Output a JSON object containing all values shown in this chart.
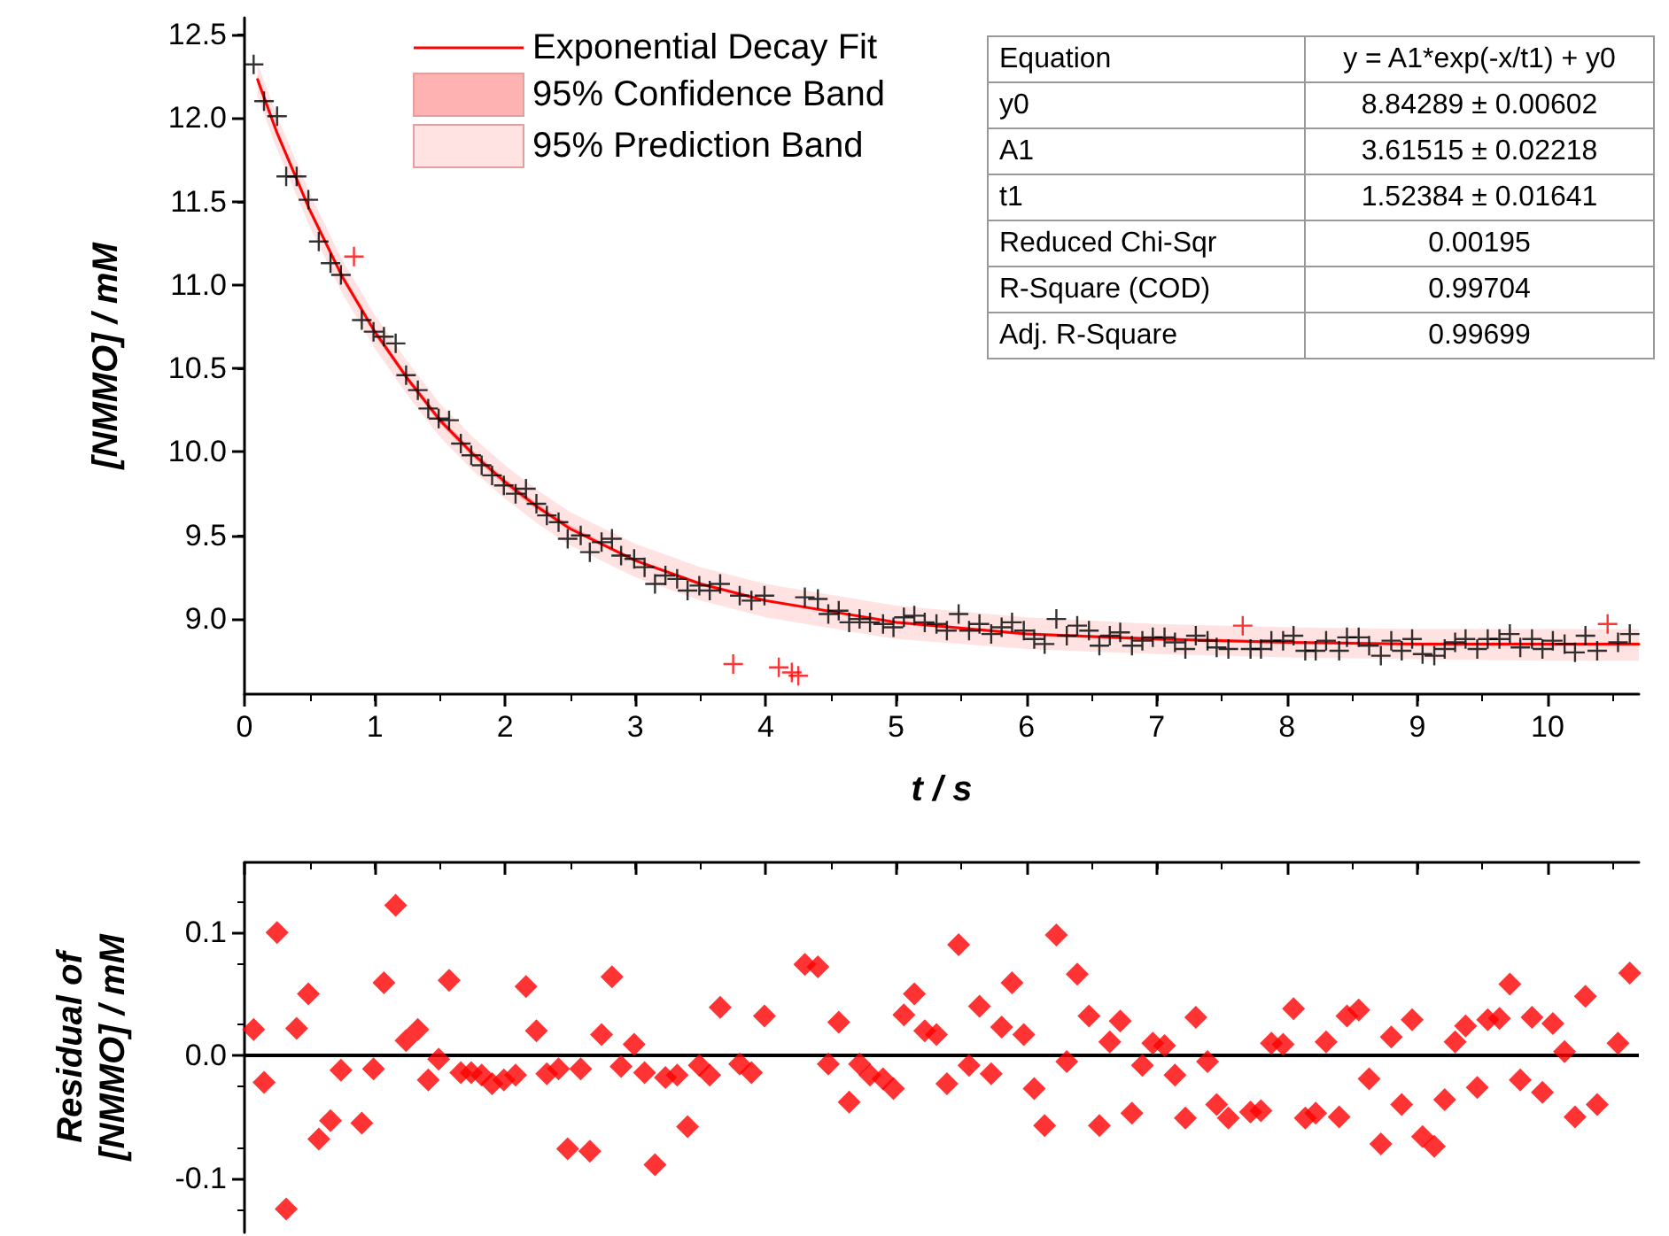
{
  "chart_data": [
    {
      "type": "scatter",
      "xlabel": "t / s",
      "ylabel": "[NMMO] / mM",
      "xlim": [
        0,
        10.7
      ],
      "ylim": [
        8.55,
        12.6
      ],
      "xticks": [
        0,
        1,
        2,
        3,
        4,
        5,
        6,
        7,
        8,
        9,
        10
      ],
      "yticks": [
        {
          "value": 9,
          "label": "9.0"
        },
        9.5,
        {
          "value": 10,
          "label": "10.0"
        },
        10.5,
        {
          "value": 11,
          "label": "11.0"
        },
        11.5,
        {
          "value": 12,
          "label": "12.0"
        },
        12.5
      ],
      "legend": "top",
      "marker": "cross",
      "grid": false,
      "annotations": [
        "Equation",
        "y = A1*exp(-x/t1) + y0",
        "y0",
        "8.84289 ± 0.00602",
        "A1",
        "3.61515 ± 0.02218",
        "t1",
        "1.52384 ± 0.01641",
        "Reduced Chi-Sqr",
        "0.00195",
        "R-Square (COD)",
        "0.99704",
        "Adj. R-Square",
        "0.99699"
      ],
      "series": [
        {
          "type": "line",
          "name": "95% Prediction Band",
          "color": "#ffe3e3",
          "x": [
            0.1,
            0.25,
            0.5,
            0.75,
            1,
            1.25,
            1.5,
            1.75,
            2,
            2.25,
            2.5,
            3,
            3.5,
            4,
            5,
            6,
            7,
            8,
            9,
            10,
            10.7
          ],
          "values": [
            null,
            null,
            null,
            null,
            null,
            null,
            null,
            null,
            null,
            null,
            null,
            null,
            null,
            null,
            null,
            null,
            null,
            null,
            null,
            null,
            null
          ],
          "lower": [
            12.13,
            11.81,
            11.35,
            10.95,
            10.62,
            10.34,
            10.09,
            9.89,
            9.72,
            9.57,
            9.44,
            9.25,
            9.11,
            9.01,
            8.88,
            8.82,
            8.79,
            8.77,
            8.76,
            8.75,
            8.75
          ],
          "upper": [
            12.33,
            12.01,
            11.55,
            11.15,
            10.82,
            10.54,
            10.29,
            10.09,
            9.92,
            9.77,
            9.64,
            9.45,
            9.31,
            9.21,
            9.08,
            9.01,
            8.97,
            8.95,
            8.94,
            8.94,
            8.94
          ]
        },
        {
          "type": "line",
          "name": "95% Confidence Band",
          "color": "#ffb2b2",
          "x": [
            0.1,
            0.25,
            0.5,
            0.75,
            1,
            1.25,
            1.5,
            1.75,
            2,
            2.25,
            2.5,
            3,
            3.5,
            4,
            5,
            6,
            7,
            8,
            9,
            10,
            10.7
          ],
          "values": [
            null,
            null,
            null,
            null,
            null,
            null,
            null,
            null,
            null,
            null,
            null,
            null,
            null,
            null,
            null,
            null,
            null,
            null,
            null,
            null,
            null
          ],
          "lower": [
            12.2,
            11.89,
            11.43,
            11.03,
            10.7,
            10.42,
            10.17,
            9.97,
            9.8,
            9.65,
            9.53,
            9.34,
            9.2,
            9.1,
            8.97,
            8.9,
            8.87,
            8.85,
            8.84,
            8.84,
            8.84
          ],
          "upper": [
            12.26,
            11.93,
            11.47,
            11.07,
            10.74,
            10.46,
            10.21,
            10.01,
            9.84,
            9.69,
            9.56,
            9.36,
            9.22,
            9.12,
            8.99,
            8.92,
            8.89,
            8.87,
            8.86,
            8.86,
            8.86
          ]
        },
        {
          "type": "line",
          "name": "Exponential Decay Fit",
          "color": "#ff0000",
          "marker": "none",
          "line_style": "solid",
          "x": [
            0.1,
            0.25,
            0.5,
            0.75,
            1,
            1.25,
            1.5,
            1.75,
            2,
            2.25,
            2.5,
            3,
            3.5,
            4,
            5,
            6,
            7,
            8,
            9,
            10,
            10.7
          ],
          "values": [
            12.23,
            11.91,
            11.45,
            11.05,
            10.72,
            10.44,
            10.19,
            9.99,
            9.82,
            9.67,
            9.54,
            9.35,
            9.21,
            9.11,
            8.98,
            8.91,
            8.88,
            8.86,
            8.85,
            8.85,
            8.85
          ]
        },
        {
          "color": "#000000",
          "x": [
            0.07,
            0.15,
            0.25,
            0.32,
            0.4,
            0.49,
            0.57,
            0.66,
            0.74,
            0.9,
            0.99,
            1.07,
            1.16,
            1.24,
            1.33,
            1.41,
            1.49,
            1.57,
            1.66,
            1.74,
            1.82,
            1.9,
            1.99,
            2.08,
            2.16,
            2.24,
            2.32,
            2.41,
            2.48,
            2.58,
            2.65,
            2.74,
            2.82,
            2.89,
            2.99,
            3.07,
            3.15,
            3.23,
            3.32,
            3.4,
            3.49,
            3.57,
            3.65,
            3.8,
            3.89,
            3.99,
            4.3,
            4.4,
            4.48,
            4.56,
            4.64,
            4.72,
            4.8,
            4.9,
            4.98,
            5.06,
            5.14,
            5.22,
            5.31,
            5.39,
            5.48,
            5.56,
            5.64,
            5.73,
            5.81,
            5.89,
            5.98,
            6.06,
            6.14,
            6.23,
            6.31,
            6.39,
            6.48,
            6.56,
            6.64,
            6.72,
            6.81,
            6.89,
            6.97,
            7.06,
            7.14,
            7.22,
            7.3,
            7.39,
            7.46,
            7.55,
            7.72,
            7.8,
            7.88,
            7.97,
            8.05,
            8.14,
            8.22,
            8.3,
            8.4,
            8.46,
            8.55,
            8.63,
            8.72,
            8.8,
            8.88,
            8.96,
            9.04,
            9.13,
            9.21,
            9.29,
            9.37,
            9.46,
            9.54,
            9.63,
            9.71,
            9.79,
            9.88,
            9.96,
            10.04,
            10.13,
            10.21,
            10.29,
            10.38,
            10.54,
            10.63
          ],
          "values": [
            12.32,
            12.1,
            12.01,
            11.65,
            11.65,
            11.51,
            11.26,
            11.13,
            11.06,
            10.79,
            10.72,
            10.69,
            10.65,
            10.46,
            10.37,
            10.26,
            10.2,
            10.19,
            10.05,
            9.98,
            9.92,
            9.86,
            9.8,
            9.75,
            9.78,
            9.69,
            9.62,
            9.58,
            9.48,
            9.5,
            9.4,
            9.46,
            9.48,
            9.38,
            9.36,
            9.31,
            9.21,
            9.26,
            9.24,
            9.17,
            9.2,
            9.17,
            9.21,
            9.14,
            9.11,
            9.14,
            9.13,
            9.12,
            9.03,
            9.05,
            8.98,
            9.0,
            8.98,
            8.97,
            8.95,
            9.01,
            9.02,
            8.98,
            8.97,
            8.93,
            9.03,
            8.93,
            8.97,
            8.91,
            8.95,
            8.98,
            8.93,
            8.88,
            8.85,
            9.0,
            8.9,
            8.96,
            8.93,
            8.84,
            8.9,
            8.92,
            8.84,
            8.87,
            8.89,
            8.89,
            8.86,
            8.82,
            8.9,
            8.87,
            8.83,
            8.82,
            8.82,
            8.82,
            8.87,
            8.87,
            8.9,
            8.81,
            8.81,
            8.87,
            8.81,
            8.89,
            8.89,
            8.84,
            8.78,
            8.87,
            8.81,
            8.88,
            8.79,
            8.78,
            8.82,
            8.86,
            8.88,
            8.82,
            8.88,
            8.88,
            8.91,
            8.83,
            8.88,
            8.82,
            8.87,
            8.85,
            8.8,
            8.9,
            8.81,
            8.86,
            8.91
          ]
        },
        {
          "color": "#ff0000",
          "x": [
            0.84,
            3.75,
            4.1,
            4.2,
            4.25,
            7.66,
            10.46
          ],
          "values": [
            11.17,
            8.73,
            8.71,
            8.68,
            8.66,
            8.96,
            8.97
          ]
        }
      ]
    },
    {
      "type": "scatter",
      "ylabel": "Residual of\n[NMMO] / mM",
      "xlim": [
        0,
        10.7
      ],
      "ylim": [
        -0.144,
        0.157
      ],
      "xticks": [
        0,
        1,
        2,
        3,
        4,
        5,
        6,
        7,
        8,
        9,
        10
      ],
      "yticks": [
        -0.1,
        {
          "value": 0,
          "label": "0.0"
        },
        0.1
      ],
      "tick_labels": "y",
      "marker": "diamond",
      "grid": false,
      "color": "#ff0000",
      "ref_lines": [
        {
          "axis": "y",
          "value": 0,
          "label": null,
          "color": "#000000"
        }
      ],
      "x": [
        0.07,
        0.15,
        0.25,
        0.32,
        0.4,
        0.49,
        0.57,
        0.66,
        0.74,
        0.9,
        0.99,
        1.07,
        1.16,
        1.24,
        1.33,
        1.41,
        1.49,
        1.57,
        1.66,
        1.74,
        1.82,
        1.9,
        1.99,
        2.08,
        2.16,
        2.24,
        2.32,
        2.41,
        2.48,
        2.58,
        2.65,
        2.74,
        2.82,
        2.89,
        2.99,
        3.07,
        3.15,
        3.23,
        3.32,
        3.4,
        3.49,
        3.57,
        3.65,
        3.8,
        3.89,
        3.99,
        4.3,
        4.4,
        4.48,
        4.56,
        4.64,
        4.72,
        4.8,
        4.9,
        4.98,
        5.06,
        5.14,
        5.22,
        5.31,
        5.39,
        5.48,
        5.56,
        5.64,
        5.73,
        5.81,
        5.89,
        5.98,
        6.06,
        6.14,
        6.23,
        6.31,
        6.39,
        6.48,
        6.56,
        6.64,
        6.72,
        6.81,
        6.89,
        6.97,
        7.06,
        7.14,
        7.22,
        7.3,
        7.39,
        7.46,
        7.55,
        7.72,
        7.8,
        7.88,
        7.97,
        8.05,
        8.14,
        8.22,
        8.3,
        8.4,
        8.46,
        8.55,
        8.63,
        8.72,
        8.8,
        8.88,
        8.96,
        9.04,
        9.13,
        9.21,
        9.29,
        9.37,
        9.46,
        9.54,
        9.63,
        9.71,
        9.79,
        9.88,
        9.96,
        10.04,
        10.13,
        10.21,
        10.29,
        10.38,
        10.54,
        10.63
      ],
      "values": [
        0.021,
        -0.022,
        0.1,
        -0.125,
        0.022,
        0.05,
        -0.068,
        -0.053,
        -0.012,
        -0.055,
        -0.011,
        0.059,
        0.122,
        0.012,
        0.021,
        -0.02,
        -0.003,
        0.061,
        -0.014,
        -0.014,
        -0.016,
        -0.023,
        -0.02,
        -0.016,
        0.056,
        0.02,
        -0.015,
        -0.011,
        -0.076,
        -0.011,
        -0.078,
        0.017,
        0.064,
        -0.009,
        0.009,
        -0.014,
        -0.089,
        -0.018,
        -0.016,
        -0.058,
        -0.008,
        -0.016,
        0.039,
        -0.007,
        -0.014,
        0.032,
        0.074,
        0.072,
        -0.007,
        0.027,
        -0.038,
        -0.007,
        -0.016,
        -0.019,
        -0.027,
        0.033,
        0.05,
        0.02,
        0.017,
        -0.023,
        0.09,
        -0.008,
        0.04,
        -0.015,
        0.023,
        0.059,
        0.017,
        -0.027,
        -0.057,
        0.098,
        -0.005,
        0.066,
        0.032,
        -0.057,
        0.011,
        0.028,
        -0.047,
        -0.008,
        0.01,
        0.008,
        -0.016,
        -0.051,
        0.031,
        -0.005,
        -0.04,
        -0.051,
        -0.046,
        -0.045,
        0.01,
        0.009,
        0.038,
        -0.051,
        -0.047,
        0.011,
        -0.05,
        0.032,
        0.037,
        -0.019,
        -0.072,
        0.015,
        -0.04,
        0.029,
        -0.066,
        -0.074,
        -0.036,
        0.011,
        0.024,
        -0.026,
        0.029,
        0.03,
        0.058,
        -0.02,
        0.031,
        -0.03,
        0.026,
        0.003,
        -0.05,
        0.048,
        -0.04,
        0.01,
        0.067
      ]
    }
  ]
}
